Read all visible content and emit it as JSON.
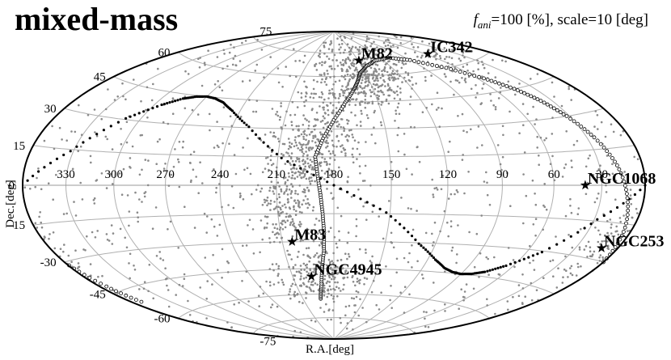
{
  "title": "mixed-mass",
  "subtitle": {
    "f_symbol": "f",
    "f_subscript": "ani",
    "rest": "=100 [%], scale=10 [deg]"
  },
  "chart_data": {
    "type": "scatter",
    "projection": "hammer-aitoff",
    "xlabel": "R.A.[deg]",
    "ylabel": "Dec.[deg]",
    "x_ticks": [
      330,
      300,
      270,
      240,
      210,
      180,
      150,
      120,
      90,
      60,
      30
    ],
    "y_ticks": [
      75,
      60,
      45,
      30,
      15,
      0,
      -15,
      -30,
      -45,
      -60,
      -75
    ],
    "xlim": [
      360,
      0
    ],
    "ylim": [
      -90,
      90
    ],
    "grid": true,
    "point_count": 2200,
    "point_color": "#8a8a8a",
    "sources": [
      {
        "name": "M82",
        "ra": 149,
        "dec": 69.7
      },
      {
        "name": "IC342",
        "ra": 57,
        "dec": 68.1
      },
      {
        "name": "NGC1068",
        "ra": 40.7,
        "dec": -0.01
      },
      {
        "name": "NGC253",
        "ra": 11.9,
        "dec": -25.3
      },
      {
        "name": "M83",
        "ra": 204.3,
        "dec": -29.9
      },
      {
        "name": "NGC4945",
        "ra": 196.4,
        "dec": -49.5
      }
    ],
    "source_marker": "star",
    "boundaries": [
      {
        "name": "",
        "style": "solid-dots",
        "ra": [
          90.0,
          82.7,
          75.0,
          65.0,
          50.0,
          28.0,
          0.0,
          332.0,
          310.0,
          295.0,
          285.0,
          277.3,
          270.0,
          262.7,
          255.0,
          245.0,
          230.0,
          208.0,
          180.0,
          152.0,
          130.0,
          115.0,
          105.0,
          97.3,
          90.0
        ],
        "dec": [
          -45.0,
          -44.4,
          -42.7,
          -38.6,
          -30.5,
          -14.3,
          0.0,
          14.3,
          30.5,
          38.6,
          42.7,
          44.4,
          45.0,
          44.4,
          42.7,
          38.6,
          30.5,
          14.3,
          0.0,
          -14.3,
          -30.5,
          -38.6,
          -42.7,
          -44.4,
          -45.0
        ]
      },
      {
        "name": "",
        "style": "open-circles",
        "ra": [
          192.9,
          190.0,
          188.0,
          186.0,
          185.5,
          186.0,
          187.0,
          188.5,
          190.0,
          186.0,
          180.0,
          172.0,
          165.0,
          160.0,
          155.0,
          145.0,
          130.0,
          110.0,
          90.0,
          70.0,
          55.0,
          45.0,
          38.0,
          32.0,
          25.0,
          18.0,
          12.0,
          5.0,
          0.0,
          355.0,
          352.0
        ],
        "dec": [
          -62.9,
          -55.0,
          -45.0,
          -35.0,
          -25.0,
          -15.0,
          -5.0,
          5.0,
          15.0,
          25.0,
          35.0,
          45.0,
          52.0,
          57.0,
          62.0,
          66.0,
          69.0,
          70.0,
          67.0,
          60.0,
          52.0,
          45.0,
          38.0,
          30.0,
          20.0,
          8.0,
          -5.0,
          -18.0,
          -30.0,
          -42.0,
          -52.0
        ]
      }
    ]
  }
}
